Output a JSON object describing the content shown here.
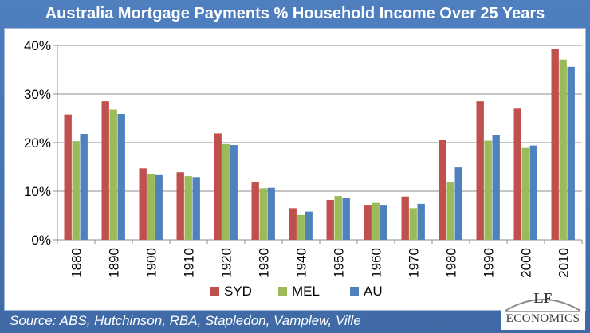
{
  "title": "Australia Mortgage Payments % Household Income Over 25 Years",
  "source": "Source: ABS, Hutchinson, RBA, Stapledon, Vamplew, Ville",
  "logo": {
    "top": "LF",
    "bottom": "ECONOMICS"
  },
  "chart_data": {
    "type": "bar",
    "title": "Australia Mortgage Payments % Household Income Over 25 Years",
    "categories": [
      "1880",
      "1890",
      "1900",
      "1910",
      "1920",
      "1930",
      "1940",
      "1950",
      "1960",
      "1970",
      "1980",
      "1990",
      "2000",
      "2010"
    ],
    "series": [
      {
        "name": "SYD",
        "color": "#c0504d",
        "values": [
          25.8,
          28.5,
          14.7,
          13.9,
          21.9,
          11.8,
          6.5,
          8.2,
          7.2,
          8.9,
          20.5,
          28.5,
          27.0,
          39.3
        ]
      },
      {
        "name": "MEL",
        "color": "#9bbb59",
        "values": [
          20.3,
          26.8,
          13.6,
          13.1,
          19.7,
          10.6,
          5.1,
          9.0,
          7.6,
          6.5,
          11.9,
          20.4,
          18.9,
          37.1
        ]
      },
      {
        "name": "AU",
        "color": "#4f81bd",
        "values": [
          21.8,
          25.9,
          13.3,
          12.9,
          19.5,
          10.7,
          5.8,
          8.6,
          7.2,
          7.4,
          14.9,
          21.6,
          19.4,
          35.6
        ]
      }
    ],
    "y_ticks": [
      "0%",
      "10%",
      "20%",
      "30%",
      "40%"
    ],
    "ylim": [
      0,
      40
    ],
    "grid": "horizontal",
    "legend_position": "bottom"
  }
}
